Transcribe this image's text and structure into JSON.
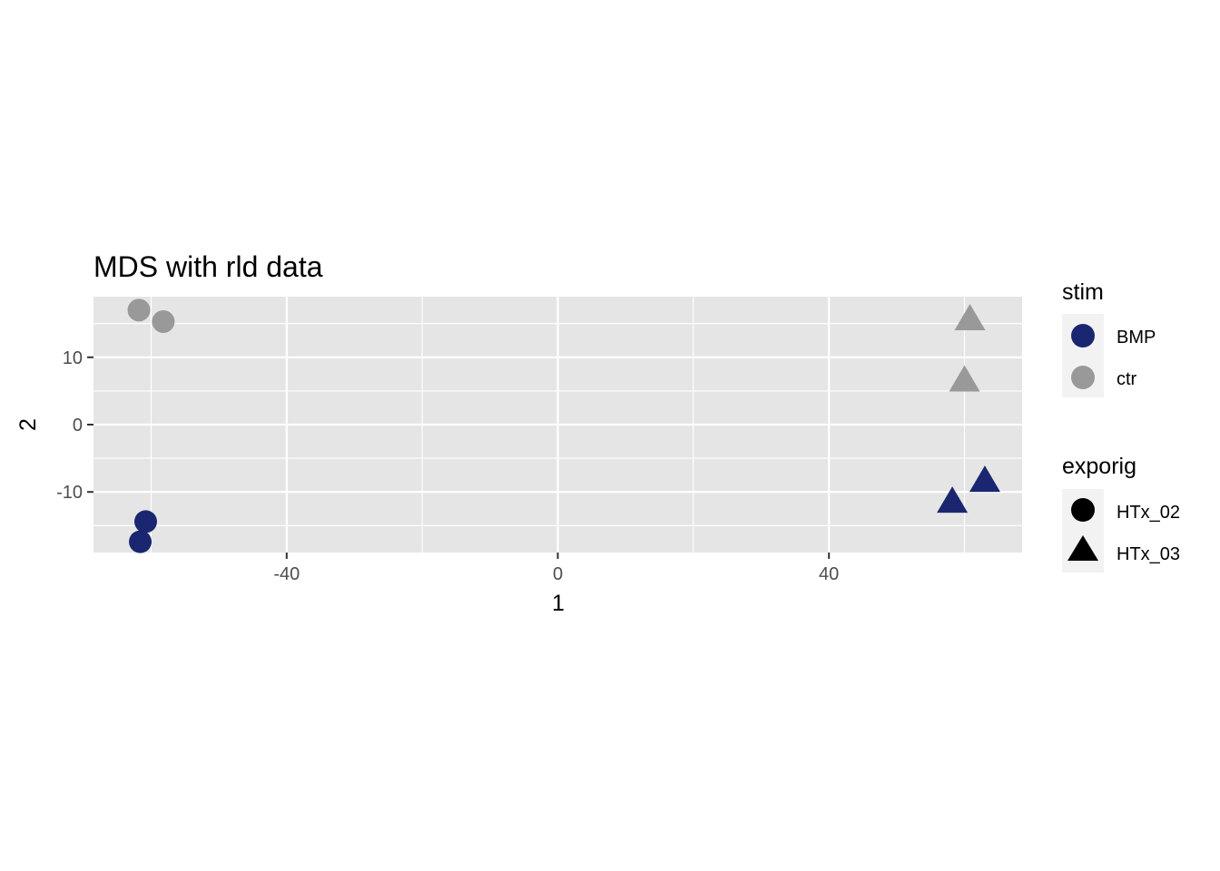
{
  "chart_data": {
    "type": "scatter",
    "title": "MDS with rld data",
    "xlabel": "1",
    "ylabel": "2",
    "xlim": [
      -68.5,
      68.5
    ],
    "ylim": [
      -19,
      19
    ],
    "xticks": [
      -40,
      0,
      40
    ],
    "xminor": [
      -60,
      -20,
      20,
      60
    ],
    "yticks": [
      -10,
      0,
      10
    ],
    "yminor": [
      -15,
      -5,
      5,
      15
    ],
    "tick_labels": {
      "x": [
        "-40",
        "0",
        "40"
      ],
      "y": [
        "-10",
        "0",
        "10"
      ]
    },
    "panel_background": "#e5e5e5",
    "grid": true,
    "legend_position": "right",
    "colors": {
      "BMP": "#1a2770",
      "ctr": "#999999"
    },
    "legends": {
      "color": {
        "title": "stim",
        "entries": [
          "BMP",
          "ctr"
        ]
      },
      "shape": {
        "title": "exporig",
        "entries": [
          "HTx_02",
          "HTx_03"
        ],
        "shapes": [
          "circle",
          "triangle"
        ]
      }
    },
    "points": [
      {
        "x": -61.8,
        "y": 17.0,
        "stim": "ctr",
        "exporig": "HTx_02"
      },
      {
        "x": -58.2,
        "y": 15.3,
        "stim": "ctr",
        "exporig": "HTx_02"
      },
      {
        "x": -60.8,
        "y": -14.4,
        "stim": "BMP",
        "exporig": "HTx_02"
      },
      {
        "x": -61.6,
        "y": -17.4,
        "stim": "BMP",
        "exporig": "HTx_02"
      },
      {
        "x": 60.8,
        "y": 15.5,
        "stim": "ctr",
        "exporig": "HTx_03"
      },
      {
        "x": 60.0,
        "y": 6.4,
        "stim": "ctr",
        "exporig": "HTx_03"
      },
      {
        "x": 63.0,
        "y": -8.5,
        "stim": "BMP",
        "exporig": "HTx_03"
      },
      {
        "x": 58.2,
        "y": -11.6,
        "stim": "BMP",
        "exporig": "HTx_03"
      }
    ]
  }
}
